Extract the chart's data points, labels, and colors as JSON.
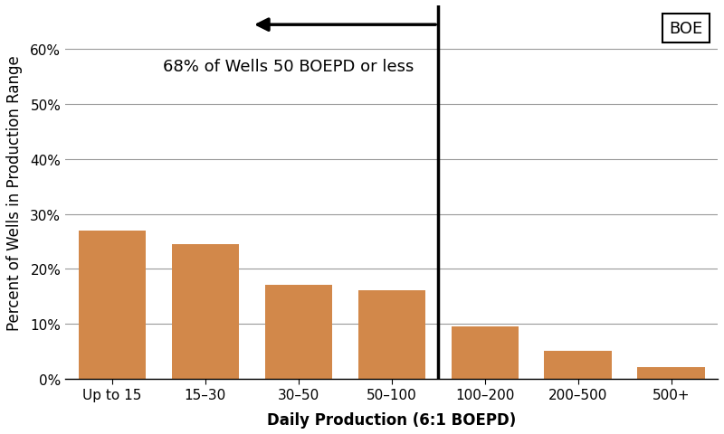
{
  "categories": [
    "Up to 15",
    "15–30",
    "30–50",
    "50–100",
    "100–200",
    "200–500",
    "500+"
  ],
  "values": [
    27,
    24.5,
    17,
    16,
    9.5,
    5,
    2
  ],
  "bar_color": "#D2884A",
  "ylabel": "Percent of Wells in Production Range",
  "xlabel": "Daily Production (6:1 BOEPD)",
  "ylim": [
    0,
    68
  ],
  "yticks": [
    0,
    10,
    20,
    30,
    40,
    50,
    60
  ],
  "ytick_labels": [
    "0%",
    "10%",
    "20%",
    "30%",
    "40%",
    "50%",
    "60%"
  ],
  "annotation_text": "68% of Wells 50 BOEPD or less",
  "legend_label": "BOE",
  "vline_x": 3.5,
  "background_color": "#ffffff",
  "grid_color": "#999999",
  "label_fontsize": 12,
  "tick_fontsize": 11,
  "annotation_fontsize": 13
}
